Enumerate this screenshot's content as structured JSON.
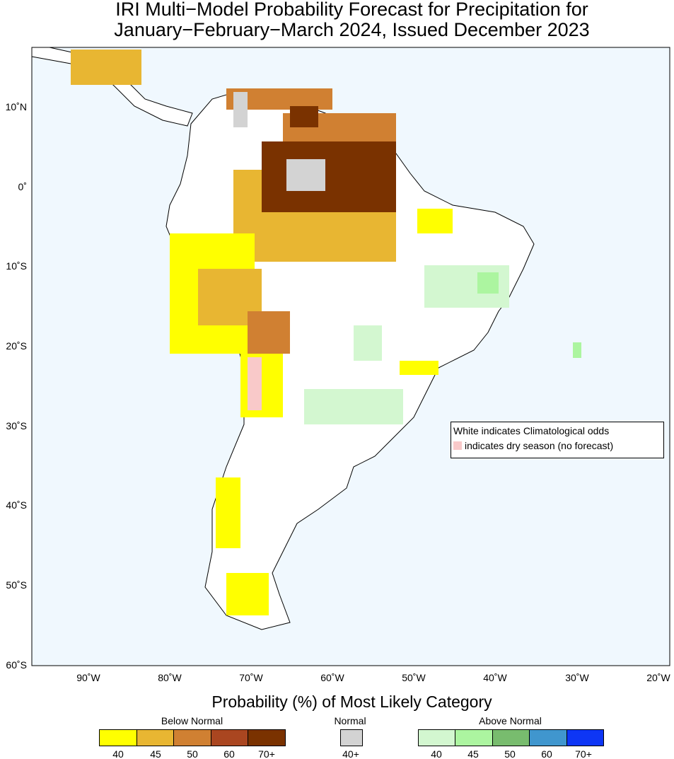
{
  "title": {
    "line1": "IRI Multi−Model Probability Forecast for Precipitation for",
    "line2": "January−February−March 2024, Issued December 2023"
  },
  "axes": {
    "lat": [
      "10˚N",
      "0˚",
      "10˚S",
      "20˚S",
      "30˚S",
      "40˚S",
      "50˚S",
      "60˚S"
    ],
    "lon": [
      "90˚W",
      "80˚W",
      "70˚W",
      "60˚W",
      "50˚W",
      "40˚W",
      "30˚W",
      "20˚W"
    ]
  },
  "note": {
    "line1": "White indicates Climatological odds",
    "line2": "indicates dry season (no forecast)",
    "dry_color": "#f9c9c9"
  },
  "legend": {
    "title": "Probability (%) of Most Likely Category",
    "below": {
      "label": "Below Normal",
      "ticks": [
        "40",
        "45",
        "50",
        "60",
        "70+"
      ],
      "colors": [
        "#ffff00",
        "#e8b632",
        "#d08032",
        "#aa4620",
        "#7a3200"
      ]
    },
    "normal": {
      "label": "Normal",
      "ticks": [
        "40+"
      ],
      "colors": [
        "#d3d3d3"
      ]
    },
    "above": {
      "label": "Above Normal",
      "ticks": [
        "40",
        "45",
        "50",
        "60",
        "70+"
      ],
      "colors": [
        "#d3f7d0",
        "#acf5a0",
        "#78bc6e",
        "#4096ce",
        "#0e36f5"
      ]
    }
  },
  "colors": {
    "ocean": "#f0f8fe",
    "land": "#ffffff"
  }
}
